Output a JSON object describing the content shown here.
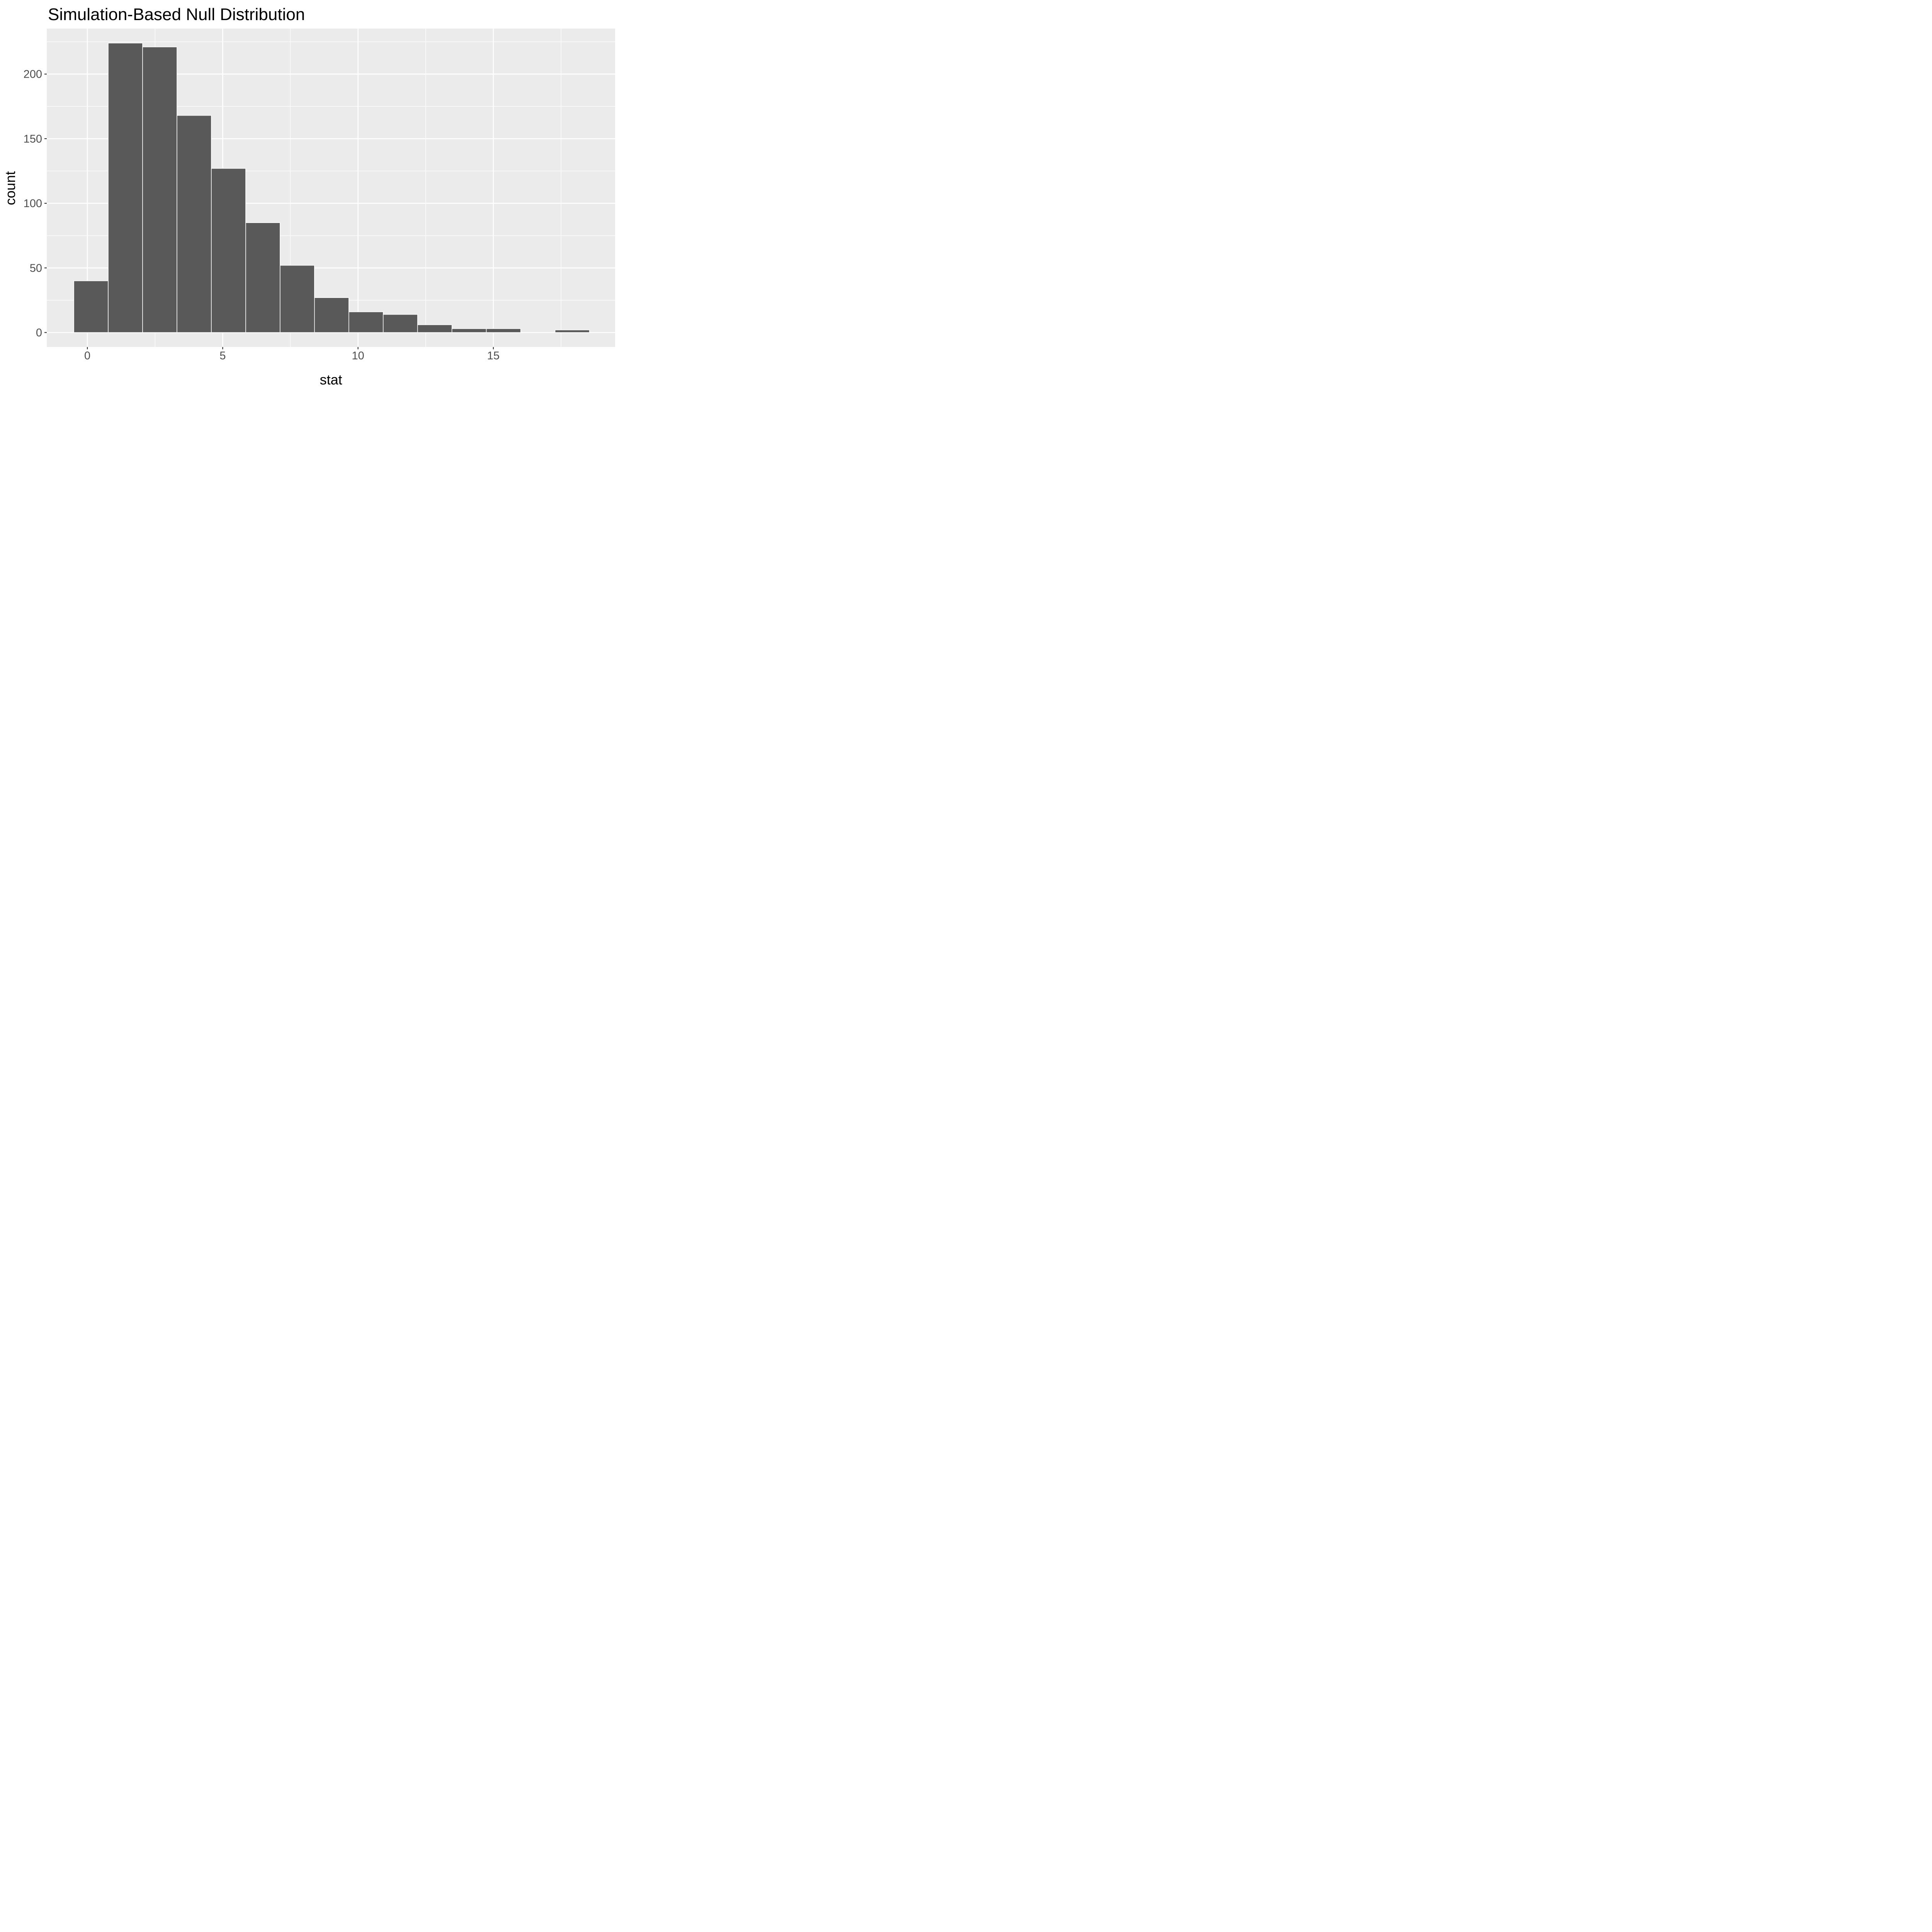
{
  "chart_data": {
    "type": "bar",
    "subtype": "histogram",
    "title": "Simulation-Based Null Distribution",
    "xlabel": "stat",
    "ylabel": "count",
    "bins": {
      "start": -0.5,
      "width": 1.27,
      "count": 15
    },
    "bin_edges": [
      -0.5,
      0.77,
      2.04,
      3.31,
      4.58,
      5.85,
      7.12,
      8.39,
      9.66,
      10.93,
      12.2,
      13.47,
      14.74,
      16.01,
      17.28,
      18.55
    ],
    "values": [
      40,
      224,
      221,
      168,
      127,
      85,
      52,
      27,
      16,
      14,
      6,
      3,
      3,
      0,
      2
    ],
    "x_ticks": [
      0,
      5,
      10,
      15
    ],
    "x_tick_labels": [
      "0",
      "5",
      "10",
      "15"
    ],
    "y_ticks": [
      0,
      50,
      100,
      150,
      200
    ],
    "y_tick_labels": [
      "0",
      "50",
      "100",
      "150",
      "200"
    ],
    "x_minor_gridlines": [
      2.5,
      7.5,
      12.5,
      17.5
    ],
    "y_minor_gridlines": [
      25,
      75,
      125,
      175,
      225
    ],
    "xlim": [
      -1.5,
      19.5
    ],
    "ylim": [
      -11.2,
      235.2
    ],
    "grid": true,
    "legend": "none",
    "colors": {
      "panel_background": "#EBEBEB",
      "plot_background": "#FFFFFF",
      "bar_fill": "#595959",
      "bar_outline": "#FFFFFF",
      "gridline": "#FFFFFF",
      "tick_label": "#4D4D4D",
      "tick_mark": "#333333",
      "title": "#000000",
      "axis_title": "#000000"
    }
  }
}
